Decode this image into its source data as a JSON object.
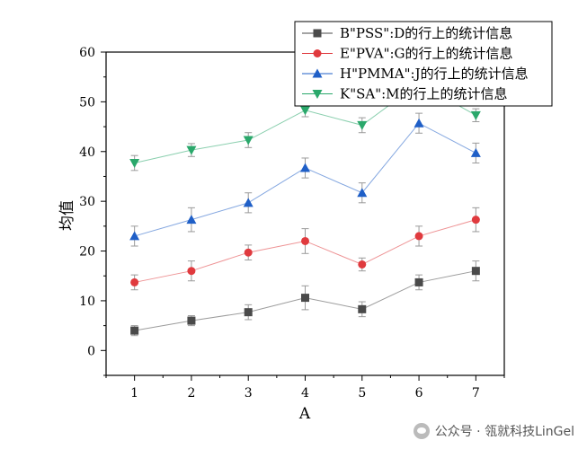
{
  "chart_data": {
    "type": "line",
    "xlabel": "A",
    "ylabel": "均值",
    "xlim": [
      0.5,
      7.5
    ],
    "ylim": [
      -5,
      60
    ],
    "x": [
      1,
      2,
      3,
      4,
      5,
      6,
      7
    ],
    "xticks": [
      "1",
      "2",
      "3",
      "4",
      "5",
      "6",
      "7"
    ],
    "yticks": [
      0,
      10,
      20,
      30,
      40,
      50,
      60
    ],
    "legend_position": "top-right",
    "series": [
      {
        "name": "B\"PSS\":D的行上的统计信息",
        "color": "#4a4a4a",
        "marker": "square",
        "values": [
          4.0,
          6.0,
          7.7,
          10.6,
          8.3,
          13.7,
          16.0
        ],
        "errors": [
          1.0,
          1.0,
          1.5,
          2.4,
          1.5,
          1.5,
          2.0
        ]
      },
      {
        "name": "E\"PVA\":G的行上的统计信息",
        "color": "#e03a3e",
        "marker": "circle",
        "values": [
          13.7,
          16.0,
          19.7,
          22.0,
          17.3,
          23.0,
          26.3
        ],
        "errors": [
          1.5,
          2.0,
          1.5,
          2.5,
          1.3,
          2.0,
          2.4
        ]
      },
      {
        "name": "H\"PMMA\":J的行上的统计信息",
        "color": "#1f5fc7",
        "marker": "triangle-up",
        "values": [
          23.0,
          26.3,
          29.7,
          36.7,
          31.7,
          45.7,
          39.7
        ],
        "errors": [
          2.0,
          2.4,
          2.0,
          2.0,
          2.0,
          2.0,
          2.0
        ]
      },
      {
        "name": "K\"SA\":M的行上的统计信息",
        "color": "#2aa86b",
        "marker": "triangle-down",
        "values": [
          37.7,
          40.3,
          42.3,
          48.3,
          45.3,
          53.7,
          47.3
        ],
        "errors": [
          1.5,
          1.3,
          1.5,
          1.3,
          1.5,
          1.5,
          1.3
        ]
      }
    ]
  },
  "watermark": {
    "icon": "wechat-icon",
    "text": "公众号 · 瓴就科技LinGel"
  }
}
